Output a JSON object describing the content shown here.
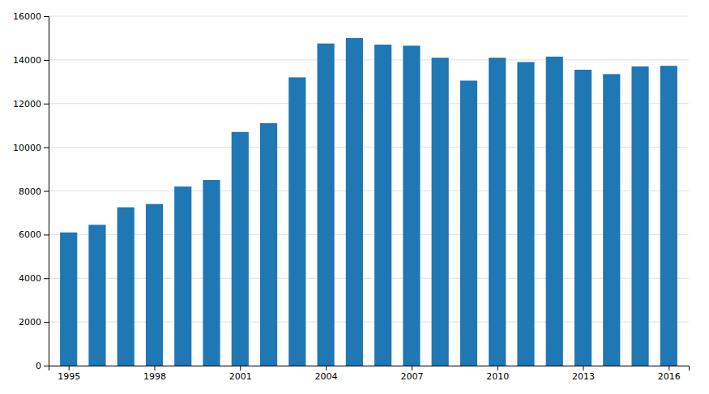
{
  "chart_data": {
    "type": "bar",
    "x": [
      1995,
      1996,
      1997,
      1998,
      1999,
      2000,
      2001,
      2002,
      2003,
      2004,
      2005,
      2006,
      2007,
      2008,
      2009,
      2010,
      2011,
      2012,
      2013,
      2014,
      2015,
      2016
    ],
    "values": [
      6100,
      6450,
      7250,
      7400,
      8200,
      8500,
      10700,
      11100,
      13200,
      14750,
      15000,
      14700,
      14650,
      14100,
      13050,
      14100,
      13900,
      14150,
      13550,
      13350,
      13700,
      13728
    ],
    "xlim": [
      1994.3,
      2016.7
    ],
    "xticks": [
      1995,
      1998,
      2001,
      2004,
      2007,
      2010,
      2013,
      2016
    ],
    "ylim": [
      0,
      16000
    ],
    "yticks": [
      0,
      2000,
      4000,
      6000,
      8000,
      10000,
      12000,
      14000,
      16000
    ],
    "grid": true
  }
}
